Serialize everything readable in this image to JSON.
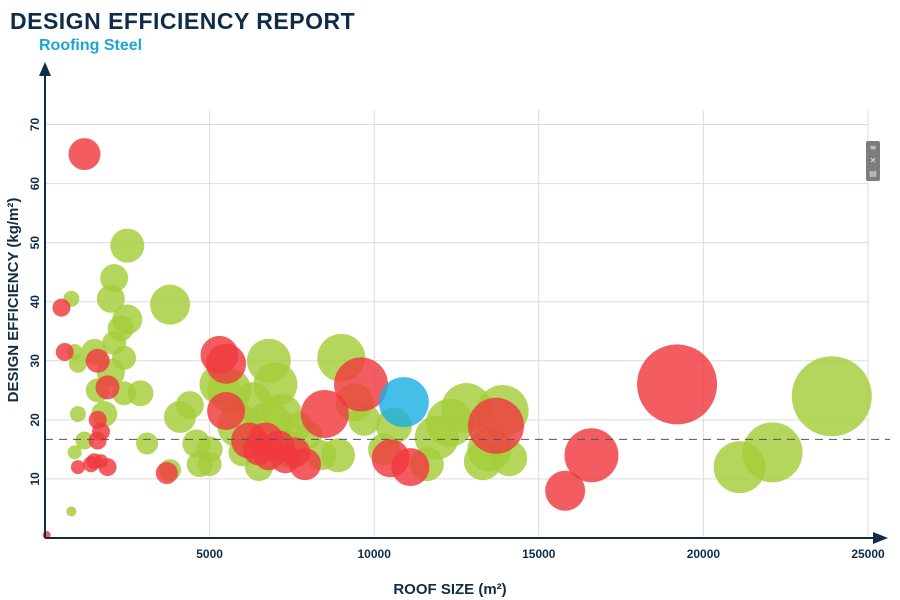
{
  "header": {
    "title": "DESIGN EFFICIENCY REPORT",
    "subtitle": "Roofing Steel"
  },
  "toolbar": {
    "icons": [
      "menu-icon",
      "expand-icon",
      "table-icon"
    ]
  },
  "colors": {
    "green": "#a5cd39",
    "red": "#f0393e",
    "blue": "#1cb0e3",
    "axis": "#0f2c48",
    "grid": "#dcdcdc"
  },
  "chart_data": {
    "type": "scatter",
    "subtype": "bubble",
    "xlabel": "ROOF SIZE (m²)",
    "ylabel": "DESIGN EFFICIENCY (kg/m²)",
    "xlim": [
      0,
      25000
    ],
    "ylim": [
      0,
      75
    ],
    "xticks": [
      5000,
      10000,
      15000,
      20000,
      25000
    ],
    "yticks": [
      10,
      20,
      30,
      40,
      50,
      60,
      70
    ],
    "grid": true,
    "reference_line": {
      "y": 16.7,
      "style": "dashed"
    },
    "series": [
      {
        "color": "#a5cd39",
        "points": [
          {
            "x": 800,
            "y": 40.5,
            "r": 8
          },
          {
            "x": 900,
            "y": 31.5,
            "r": 8
          },
          {
            "x": 1000,
            "y": 29.5,
            "r": 9
          },
          {
            "x": 1000,
            "y": 21,
            "r": 8
          },
          {
            "x": 900,
            "y": 14.5,
            "r": 7
          },
          {
            "x": 800,
            "y": 4.5,
            "r": 5
          },
          {
            "x": 1200,
            "y": 16.5,
            "r": 9
          },
          {
            "x": 1500,
            "y": 31.5,
            "r": 13
          },
          {
            "x": 1600,
            "y": 25,
            "r": 12
          },
          {
            "x": 1800,
            "y": 21,
            "r": 13
          },
          {
            "x": 2000,
            "y": 40.5,
            "r": 14
          },
          {
            "x": 2000,
            "y": 28,
            "r": 14
          },
          {
            "x": 2100,
            "y": 44,
            "r": 14
          },
          {
            "x": 2100,
            "y": 33,
            "r": 12
          },
          {
            "x": 2300,
            "y": 35.5,
            "r": 13
          },
          {
            "x": 2400,
            "y": 30.5,
            "r": 12
          },
          {
            "x": 2500,
            "y": 37,
            "r": 15
          },
          {
            "x": 2400,
            "y": 24.5,
            "r": 12
          },
          {
            "x": 2500,
            "y": 49.5,
            "r": 17
          },
          {
            "x": 2900,
            "y": 24.5,
            "r": 13
          },
          {
            "x": 3100,
            "y": 16,
            "r": 11
          },
          {
            "x": 3800,
            "y": 39.5,
            "r": 20
          },
          {
            "x": 3800,
            "y": 11.5,
            "r": 11
          },
          {
            "x": 4100,
            "y": 20.5,
            "r": 16
          },
          {
            "x": 4400,
            "y": 22.5,
            "r": 14
          },
          {
            "x": 4600,
            "y": 16,
            "r": 14
          },
          {
            "x": 4700,
            "y": 12.5,
            "r": 13
          },
          {
            "x": 5000,
            "y": 15,
            "r": 13
          },
          {
            "x": 5000,
            "y": 12.5,
            "r": 12
          },
          {
            "x": 5300,
            "y": 26,
            "r": 20
          },
          {
            "x": 5600,
            "y": 25,
            "r": 22
          },
          {
            "x": 5900,
            "y": 19,
            "r": 22
          },
          {
            "x": 6000,
            "y": 14.5,
            "r": 14
          },
          {
            "x": 6300,
            "y": 23,
            "r": 20
          },
          {
            "x": 6500,
            "y": 12,
            "r": 14
          },
          {
            "x": 6800,
            "y": 30,
            "r": 22
          },
          {
            "x": 6800,
            "y": 19,
            "r": 24
          },
          {
            "x": 7000,
            "y": 26,
            "r": 22
          },
          {
            "x": 7200,
            "y": 21,
            "r": 20
          },
          {
            "x": 7400,
            "y": 15,
            "r": 18
          },
          {
            "x": 7700,
            "y": 19,
            "r": 14
          },
          {
            "x": 8000,
            "y": 17.5,
            "r": 14
          },
          {
            "x": 8400,
            "y": 14,
            "r": 15
          },
          {
            "x": 8900,
            "y": 14,
            "r": 17
          },
          {
            "x": 9000,
            "y": 30.5,
            "r": 24
          },
          {
            "x": 9400,
            "y": 23,
            "r": 19
          },
          {
            "x": 9700,
            "y": 20,
            "r": 16
          },
          {
            "x": 10300,
            "y": 15,
            "r": 16
          },
          {
            "x": 10600,
            "y": 19,
            "r": 18
          },
          {
            "x": 11600,
            "y": 12.5,
            "r": 17
          },
          {
            "x": 11900,
            "y": 17,
            "r": 22
          },
          {
            "x": 12300,
            "y": 19.5,
            "r": 24
          },
          {
            "x": 12800,
            "y": 22,
            "r": 25
          },
          {
            "x": 13300,
            "y": 13,
            "r": 19
          },
          {
            "x": 13500,
            "y": 15,
            "r": 22
          },
          {
            "x": 13900,
            "y": 21.5,
            "r": 26
          },
          {
            "x": 14100,
            "y": 13.5,
            "r": 18
          },
          {
            "x": 21100,
            "y": 12,
            "r": 26
          },
          {
            "x": 22100,
            "y": 14.5,
            "r": 30
          },
          {
            "x": 23900,
            "y": 24,
            "r": 40
          }
        ]
      },
      {
        "color": "#f0393e",
        "points": [
          {
            "x": 1200,
            "y": 65,
            "r": 16
          },
          {
            "x": 500,
            "y": 39,
            "r": 9
          },
          {
            "x": 600,
            "y": 31.5,
            "r": 9
          },
          {
            "x": 1000,
            "y": 12,
            "r": 7
          },
          {
            "x": 1400,
            "y": 12.5,
            "r": 8
          },
          {
            "x": 1500,
            "y": 13,
            "r": 8
          },
          {
            "x": 1600,
            "y": 30,
            "r": 12
          },
          {
            "x": 1600,
            "y": 20,
            "r": 9
          },
          {
            "x": 1700,
            "y": 18,
            "r": 9
          },
          {
            "x": 1600,
            "y": 16.5,
            "r": 9
          },
          {
            "x": 1700,
            "y": 13,
            "r": 7
          },
          {
            "x": 1900,
            "y": 25.5,
            "r": 12
          },
          {
            "x": 1900,
            "y": 12,
            "r": 9
          },
          {
            "x": 3700,
            "y": 11,
            "r": 11
          },
          {
            "x": 5300,
            "y": 31,
            "r": 19
          },
          {
            "x": 5500,
            "y": 29.5,
            "r": 20
          },
          {
            "x": 5500,
            "y": 21.5,
            "r": 19
          },
          {
            "x": 6200,
            "y": 16.5,
            "r": 18
          },
          {
            "x": 6500,
            "y": 15,
            "r": 16
          },
          {
            "x": 6700,
            "y": 16.5,
            "r": 18
          },
          {
            "x": 6800,
            "y": 14,
            "r": 15
          },
          {
            "x": 7100,
            "y": 15.5,
            "r": 16
          },
          {
            "x": 7300,
            "y": 13.5,
            "r": 15
          },
          {
            "x": 7600,
            "y": 14.5,
            "r": 15
          },
          {
            "x": 7900,
            "y": 12.5,
            "r": 16
          },
          {
            "x": 8500,
            "y": 21,
            "r": 24
          },
          {
            "x": 9600,
            "y": 26,
            "r": 27
          },
          {
            "x": 10500,
            "y": 13.5,
            "r": 19
          },
          {
            "x": 11100,
            "y": 12,
            "r": 19
          },
          {
            "x": 13700,
            "y": 19,
            "r": 28
          },
          {
            "x": 15800,
            "y": 8,
            "r": 20
          },
          {
            "x": 16600,
            "y": 14,
            "r": 27
          },
          {
            "x": 19200,
            "y": 26,
            "r": 40
          },
          {
            "x": 50,
            "y": 0.5,
            "r": 4
          }
        ]
      },
      {
        "color": "#1cb0e3",
        "points": [
          {
            "x": 10900,
            "y": 23,
            "r": 25
          }
        ]
      }
    ]
  }
}
